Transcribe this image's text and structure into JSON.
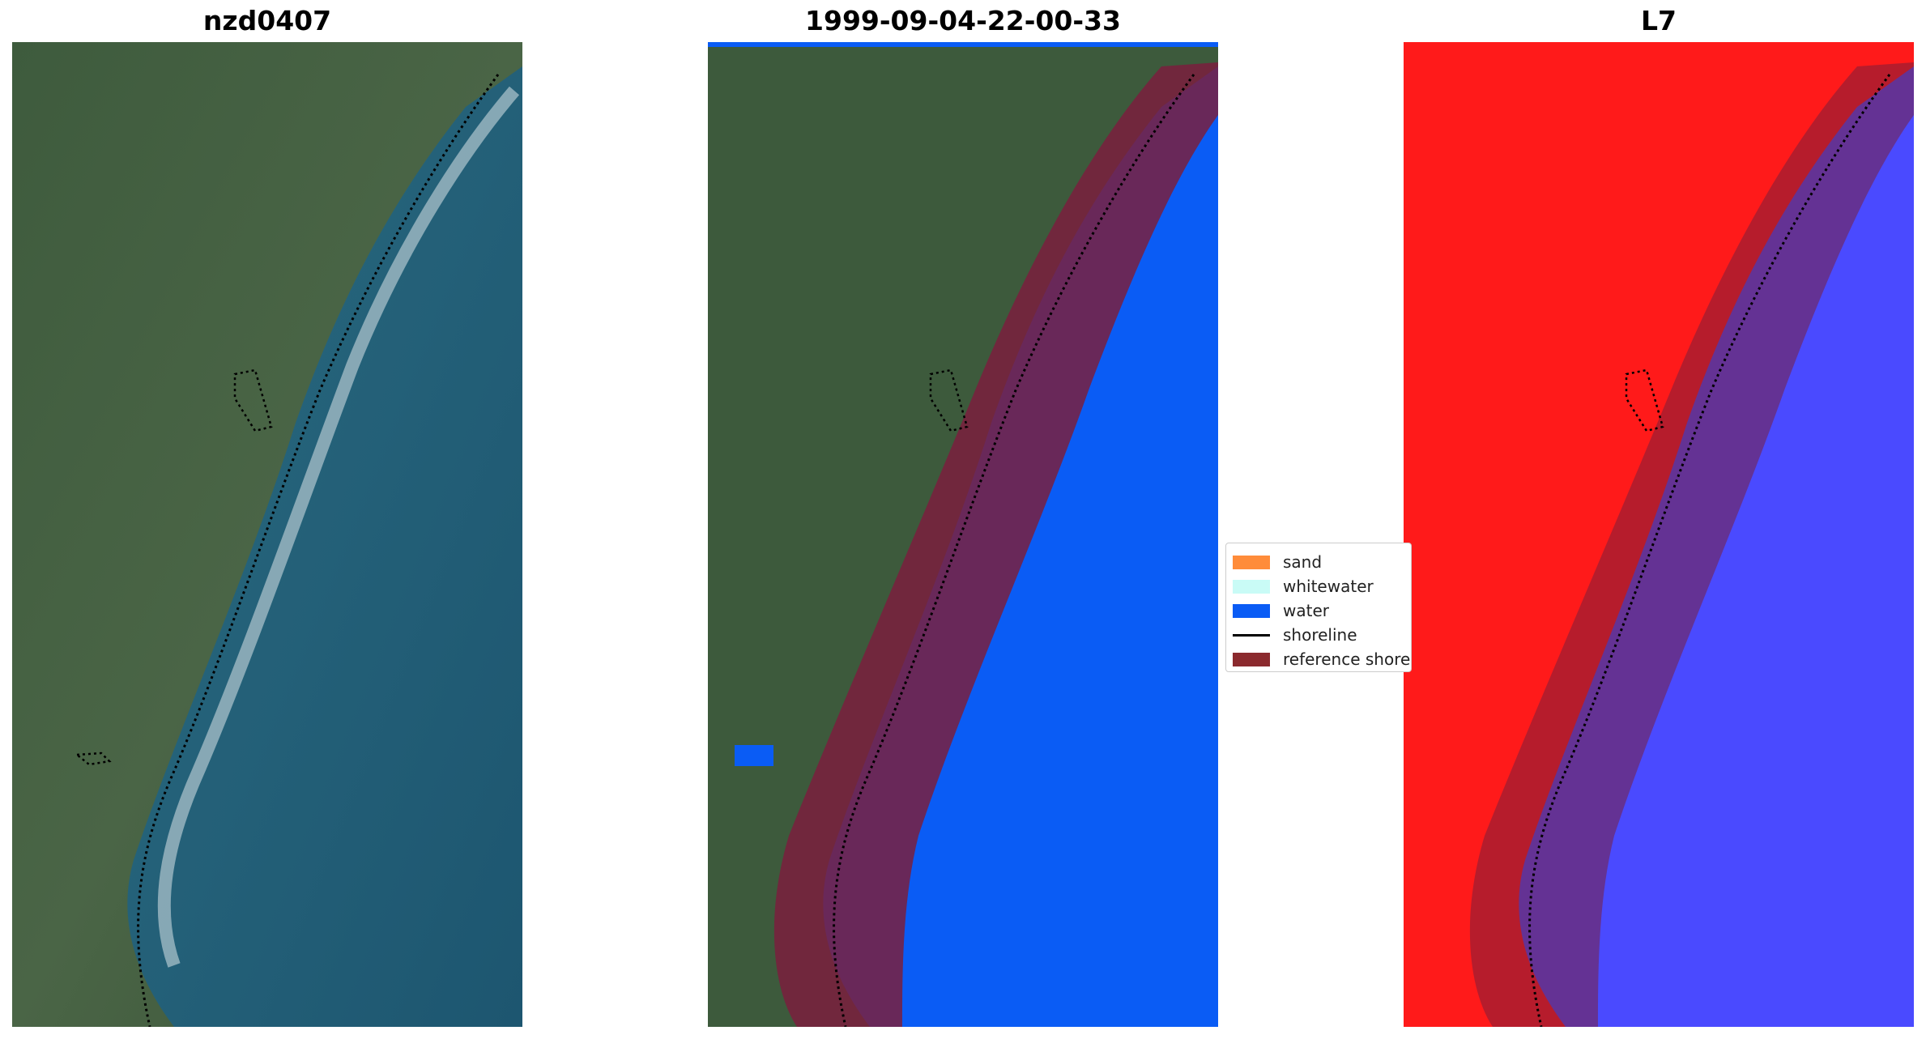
{
  "panels": [
    {
      "title": "nzd0407"
    },
    {
      "title": "1999-09-04-22-00-33"
    },
    {
      "title": "L7"
    }
  ],
  "legend": {
    "items": [
      {
        "label": "sand",
        "color": "#ff8c3a"
      },
      {
        "label": "whitewater",
        "color": "#c9fbf6"
      },
      {
        "label": "water",
        "color": "#0a5cf5"
      },
      {
        "label": "shoreline",
        "color": "#000000"
      },
      {
        "label": "reference shoreline buffer",
        "color": "#8b2a2e"
      }
    ]
  },
  "colors": {
    "land": "#3d5a3c",
    "sea": "#1f5a72",
    "classified_water": "#0a5cf5",
    "buffer": "#7a1f3d",
    "index_land": "#ff1010",
    "index_water": "#4a4aff"
  }
}
